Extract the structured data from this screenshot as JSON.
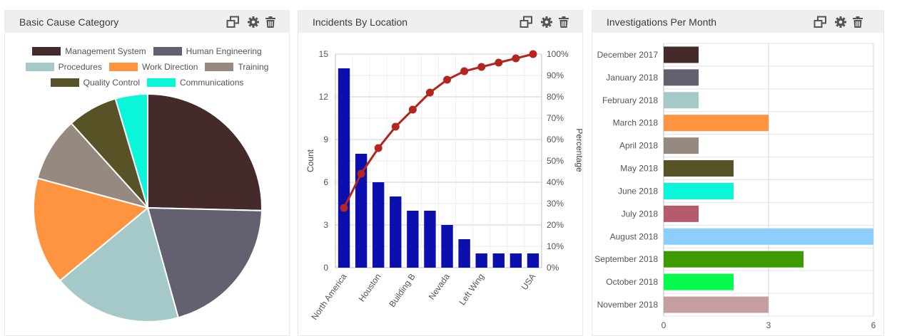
{
  "panels": {
    "cause": {
      "title": "Basic Cause Category"
    },
    "location": {
      "title": "Incidents By Location"
    },
    "monthly": {
      "title": "Investigations Per Month"
    }
  },
  "icons": [
    "restore-window-icon",
    "gear-icon",
    "trash-icon"
  ],
  "chart_data": [
    {
      "type": "pie",
      "title": "Basic Cause Category",
      "legend": "top",
      "categories": [
        "Management System",
        "Human Engineering",
        "Procedures",
        "Work Direction",
        "Training",
        "Quality Control",
        "Communications"
      ],
      "values": [
        25,
        20,
        18,
        15,
        9,
        7,
        4.5
      ],
      "colors": [
        "#452a2b",
        "#636170",
        "#a5c9c8",
        "#fe943f",
        "#968a80",
        "#575327",
        "#0bf5d8"
      ]
    },
    {
      "type": "bar",
      "title": "Incidents By Location",
      "categories": [
        "North America",
        "",
        "Houston",
        "",
        "Building B",
        "",
        "Nevada",
        "",
        "Left Wing",
        "",
        "",
        "USA"
      ],
      "values": [
        14,
        8,
        6,
        5,
        4,
        4,
        3,
        2,
        1,
        1,
        1,
        1
      ],
      "cumulative_percent": [
        28,
        44,
        56,
        66,
        74,
        82,
        88,
        92,
        94,
        96,
        98,
        100
      ],
      "ylabel": "Count",
      "y2label": "Percentage",
      "ylim": [
        0,
        15
      ],
      "yticks": [
        "0",
        "3",
        "6",
        "9",
        "12",
        "15"
      ],
      "y2ticks": [
        "0%",
        "10%",
        "20%",
        "30%",
        "40%",
        "50%",
        "60%",
        "70%",
        "80%",
        "90%",
        "100%"
      ],
      "bar_color": "#0a0fad",
      "line_color": "#b42520"
    },
    {
      "type": "bar",
      "orientation": "horizontal",
      "title": "Investigations Per Month",
      "categories": [
        "December 2017",
        "January 2018",
        "February 2018",
        "March 2018",
        "April 2018",
        "May 2018",
        "June 2018",
        "July 2018",
        "August 2018",
        "September 2018",
        "October 2018",
        "November 2018"
      ],
      "values": [
        1,
        1,
        1,
        3,
        1,
        2,
        2,
        1,
        6,
        4,
        2,
        3
      ],
      "xlim": [
        0,
        6
      ],
      "xticks": [
        "0",
        "3",
        "6"
      ],
      "colors": [
        "#452a2b",
        "#636170",
        "#a5c9c8",
        "#fe943f",
        "#968a80",
        "#575327",
        "#0bf5d8",
        "#b45c6b",
        "#8ccfff",
        "#3d9a00",
        "#06fb4f",
        "#c49ea0"
      ]
    }
  ]
}
